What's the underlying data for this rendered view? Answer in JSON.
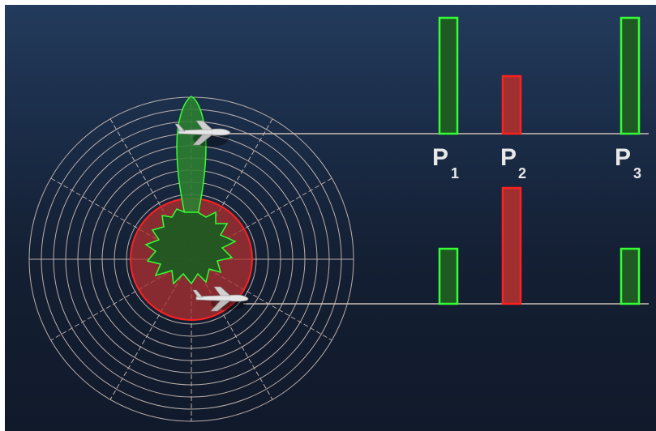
{
  "labels": {
    "p1_main": "P",
    "p1_sub": "1",
    "p2_main": "P",
    "p2_sub": "2",
    "p3_main": "P",
    "p3_sub": "3"
  },
  "pulses": {
    "top": {
      "P1": "green",
      "P2": "red",
      "P3": "green"
    },
    "bottom": {
      "P1": "green",
      "P2": "red",
      "P3": "green"
    }
  },
  "colors": {
    "background_top": "#233b5c",
    "background_bottom": "#111a2b",
    "main_lobe": "#2e7d32",
    "main_lobe_outline": "#00ff00",
    "omni_pattern": "#b03030",
    "omni_outline": "#ff0000",
    "pulse_green": "#1f5a22",
    "pulse_red": "#b02020",
    "grid": "#d8c8c0",
    "baseline": "#cdbdb4"
  },
  "icons": {
    "top_target": "airplane-icon",
    "bottom_target": "airplane-icon"
  }
}
